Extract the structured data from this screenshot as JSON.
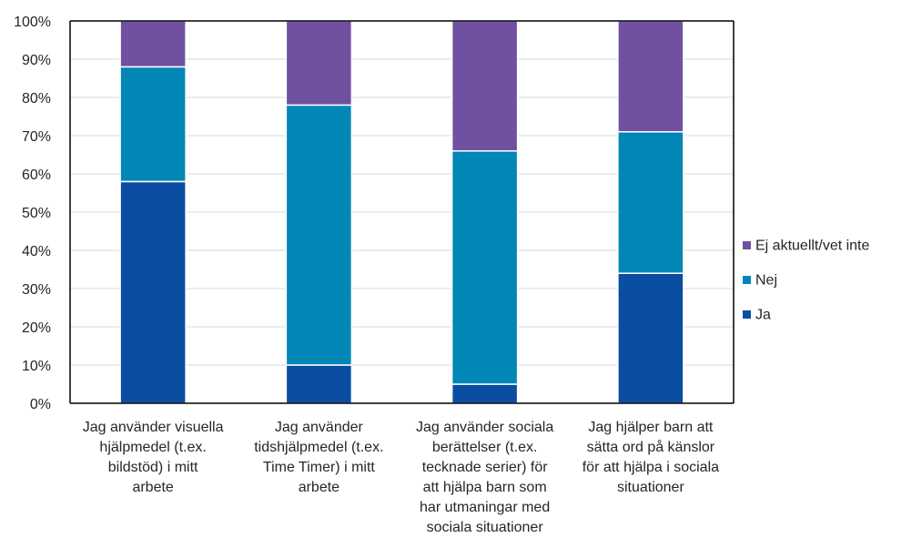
{
  "chart_data": {
    "type": "bar",
    "stacked": true,
    "categories": [
      [
        "Jag använder visuella",
        "hjälpmedel (t.ex.",
        "bildstöd) i mitt",
        "arbete"
      ],
      [
        "Jag använder",
        "tidshjälpmedel (t.ex.",
        "Time Timer) i mitt",
        "arbete"
      ],
      [
        "Jag använder sociala",
        "berättelser (t.ex.",
        "tecknade serier) för",
        "att hjälpa barn som",
        "har utmaningar med",
        "sociala situationer"
      ],
      [
        "Jag hjälper barn att",
        "sätta ord på känslor",
        "för att hjälpa i sociala",
        "situationer"
      ]
    ],
    "series": [
      {
        "name": "Ja",
        "color": "#0b4da2",
        "values": [
          58,
          10,
          5,
          34
        ]
      },
      {
        "name": "Nej",
        "color": "#0087b5",
        "values": [
          30,
          68,
          61,
          37
        ]
      },
      {
        "name": "Ej aktuellt/vet inte",
        "color": "#7050a0",
        "values": [
          12,
          22,
          34,
          29
        ]
      }
    ],
    "yticks": [
      "0%",
      "10%",
      "20%",
      "30%",
      "40%",
      "50%",
      "60%",
      "70%",
      "80%",
      "90%",
      "100%"
    ],
    "ylim": [
      0,
      100
    ],
    "grid": true,
    "legend_position": "right",
    "legend_order": [
      "Ej aktuellt/vet inte",
      "Nej",
      "Ja"
    ]
  }
}
